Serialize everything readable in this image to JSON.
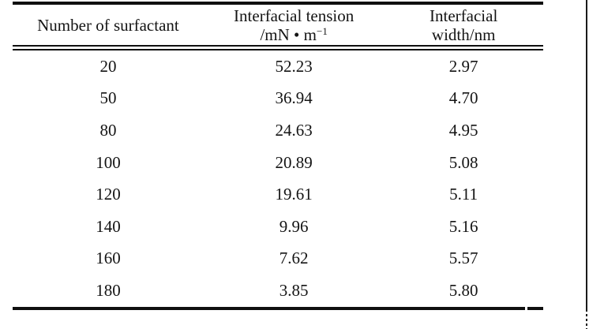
{
  "table": {
    "header": {
      "col1": "Number of surfactant",
      "col2_line1": "Interfacial tension",
      "col2_unit_prefix": "/mN • m",
      "col2_unit_exponent": "−1",
      "col3_line1": "Interfacial",
      "col3_line2": "width/nm"
    },
    "rows": [
      {
        "surfactant": "20",
        "tension": "52.23",
        "width": "2.97"
      },
      {
        "surfactant": "50",
        "tension": "36.94",
        "width": "4.70"
      },
      {
        "surfactant": "80",
        "tension": "24.63",
        "width": "4.95"
      },
      {
        "surfactant": "100",
        "tension": "20.89",
        "width": "5.08"
      },
      {
        "surfactant": "120",
        "tension": "19.61",
        "width": "5.11"
      },
      {
        "surfactant": "140",
        "tension": "9.96",
        "width": "5.16"
      },
      {
        "surfactant": "160",
        "tension": "7.62",
        "width": "5.57"
      },
      {
        "surfactant": "180",
        "tension": "3.85",
        "width": "5.80"
      }
    ]
  },
  "chart_data": {
    "type": "table",
    "columns": [
      "Number of surfactant",
      "Interfacial tension /mN·m⁻¹",
      "Interfacial width/nm"
    ],
    "rows": [
      [
        20,
        52.23,
        2.97
      ],
      [
        50,
        36.94,
        4.7
      ],
      [
        80,
        24.63,
        4.95
      ],
      [
        100,
        20.89,
        5.08
      ],
      [
        120,
        19.61,
        5.11
      ],
      [
        140,
        9.96,
        5.16
      ],
      [
        160,
        7.62,
        5.57
      ],
      [
        180,
        3.85,
        5.8
      ]
    ]
  },
  "colors": {
    "background": "#ffffff",
    "text": "#141414",
    "rule": "#0f0f0f"
  }
}
